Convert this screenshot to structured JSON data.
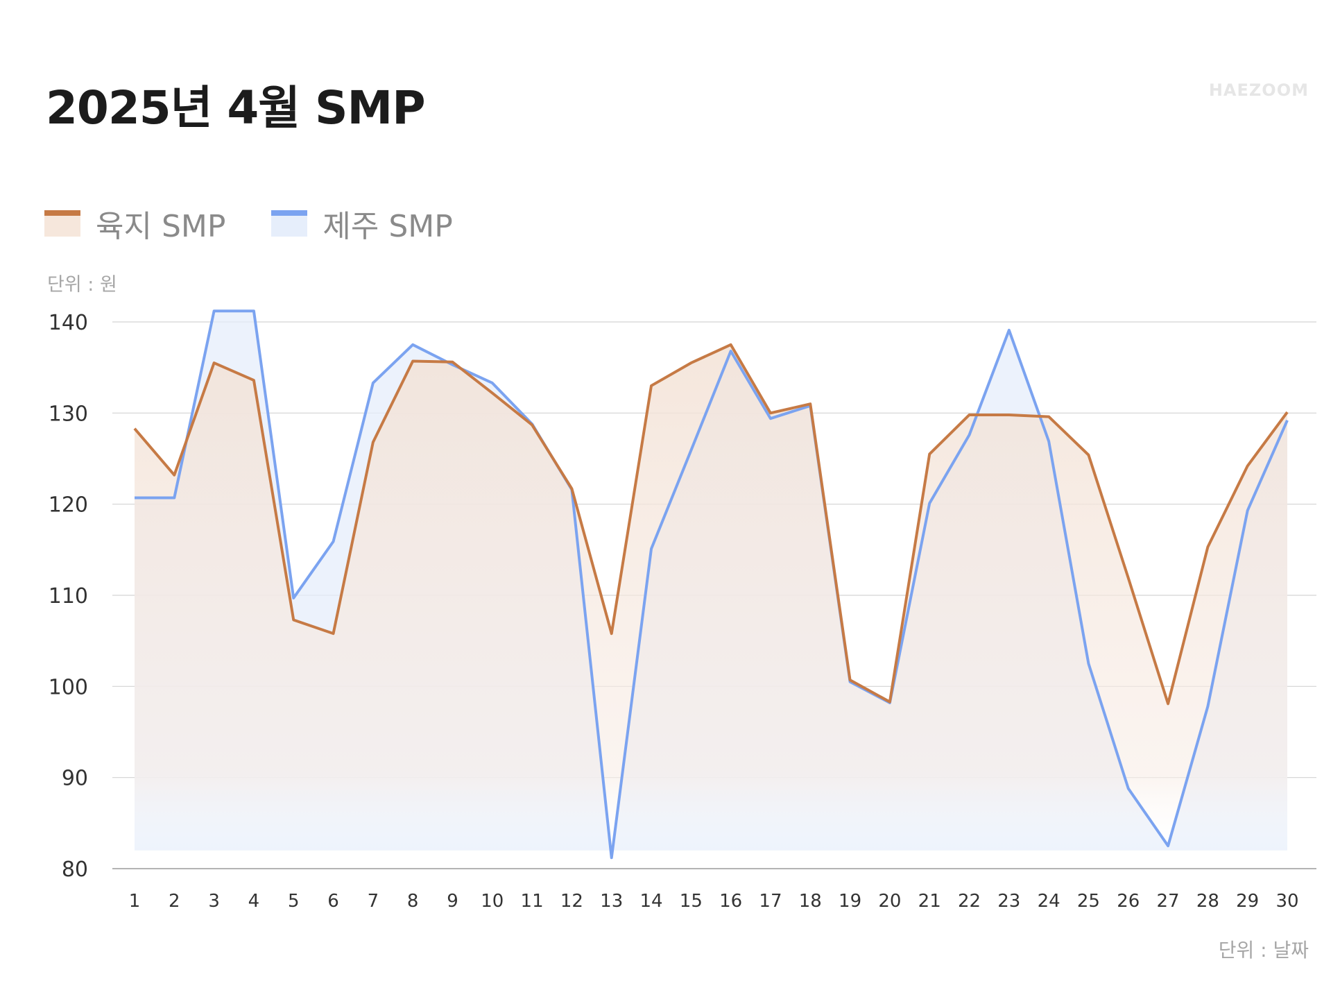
{
  "header": {
    "title": "2025년 4월 SMP",
    "brand": "HAEZOOM"
  },
  "legend": [
    {
      "label": "육지 SMP"
    },
    {
      "label": "제주 SMP"
    }
  ],
  "colors": {
    "mainland_line": "#c67a45",
    "mainland_fill": "#f6e7dc",
    "jeju_line": "#7ba3f0",
    "jeju_fill": "#e6eefb"
  },
  "chart_data": {
    "type": "line",
    "title": "2025년 4월 SMP",
    "ylabel": "단위 : 원",
    "xlabel": "단위 : 날짜",
    "ylim": [
      80,
      140
    ],
    "yticks": [
      80,
      90,
      100,
      110,
      120,
      130,
      140
    ],
    "grid": true,
    "legend_position": "top-left",
    "x": [
      1,
      2,
      3,
      4,
      5,
      6,
      7,
      8,
      9,
      10,
      11,
      12,
      13,
      14,
      15,
      16,
      17,
      18,
      19,
      20,
      21,
      22,
      23,
      24,
      25,
      26,
      27,
      28,
      29,
      30
    ],
    "series": [
      {
        "name": "육지 SMP",
        "values": [
          128.3,
          123.2,
          135.5,
          133.6,
          107.3,
          105.8,
          126.8,
          135.7,
          135.6,
          132.2,
          128.7,
          121.7,
          105.8,
          133.0,
          135.5,
          137.5,
          130.0,
          131.0,
          100.7,
          98.3,
          125.5,
          129.8,
          129.8,
          129.6,
          125.4,
          111.9,
          98.1,
          115.3,
          124.2,
          130.1
        ]
      },
      {
        "name": "제주 SMP",
        "values": [
          120.7,
          120.7,
          141.2,
          141.2,
          109.7,
          115.9,
          133.3,
          137.5,
          135.3,
          133.3,
          128.8,
          121.6,
          81.2,
          115.1,
          125.9,
          136.8,
          129.4,
          130.8,
          100.5,
          98.2,
          120.1,
          127.6,
          139.1,
          126.9,
          102.5,
          88.8,
          82.5,
          97.8,
          119.3,
          129.2
        ]
      }
    ]
  }
}
